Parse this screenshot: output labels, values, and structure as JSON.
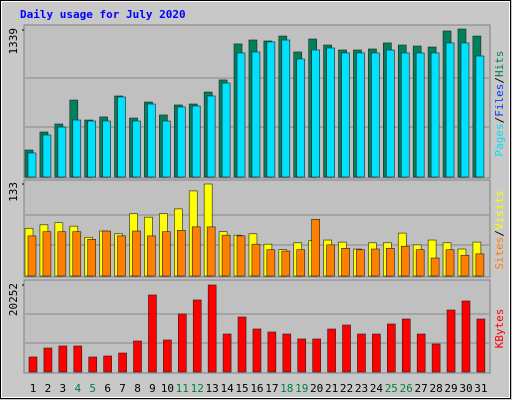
{
  "chart_data": [
    {
      "type": "bar",
      "title": "Daily usage for July 2020",
      "ylim": [
        0,
        1339
      ],
      "yticks": [
        1339
      ],
      "series": [
        {
          "name": "Hits",
          "color": "#00805c",
          "values": [
            246,
            410,
            483,
            701,
            519,
            547,
            738,
            537,
            683,
            565,
            656,
            665,
            774,
            884,
            1212,
            1248,
            1239,
            1284,
            1139,
            1257,
            1202,
            1157,
            1157,
            1166,
            1221,
            1202,
            1193,
            1184,
            1330,
            1348,
            1284
          ]
        },
        {
          "name": "Pages",
          "color": "#00e0ff",
          "values": [
            219,
            383,
            455,
            519,
            510,
            510,
            729,
            510,
            665,
            510,
            638,
            647,
            738,
            856,
            1130,
            1139,
            1230,
            1248,
            1075,
            1157,
            1175,
            1130,
            1130,
            1130,
            1157,
            1130,
            1130,
            1130,
            1221,
            1221,
            1102
          ]
        }
      ],
      "legend_extra": {
        "name": "Files",
        "color": "#0040ff"
      },
      "legend_separator": "/"
    },
    {
      "type": "bar",
      "ylim": [
        0,
        133
      ],
      "yticks": [
        133
      ],
      "series": [
        {
          "name": "Visits",
          "color": "#ffff00",
          "values": [
            69,
            74,
            77,
            72,
            56,
            65,
            61,
            90,
            85,
            90,
            97,
            123,
            133,
            64,
            59,
            61,
            46,
            38,
            48,
            51,
            52,
            49,
            39,
            48,
            48,
            62,
            45,
            52,
            48,
            39,
            49
          ]
        },
        {
          "name": "Sites",
          "color": "#ff8000",
          "values": [
            58,
            64,
            64,
            64,
            53,
            65,
            58,
            65,
            58,
            64,
            66,
            71,
            71,
            59,
            58,
            46,
            38,
            36,
            38,
            82,
            45,
            40,
            38,
            39,
            40,
            43,
            38,
            26,
            38,
            30,
            32
          ]
        }
      ],
      "legend_separator": "/"
    },
    {
      "type": "bar",
      "ylim": [
        0,
        20252
      ],
      "yticks": [
        20252
      ],
      "series": [
        {
          "name": "KBytes",
          "color": "#ff0000",
          "values": [
            3492,
            5587,
            6053,
            6053,
            3492,
            3725,
            4423,
            7217,
            17926,
            7450,
            13502,
            16762,
            20252,
            8846,
            12804,
            10010,
            9312,
            8846,
            7682,
            7682,
            10010,
            10942,
            8846,
            8846,
            11174,
            12338,
            8846,
            6518,
            14434,
            16529,
            12338
          ]
        }
      ],
      "categories": [
        "1",
        "2",
        "3",
        "4",
        "5",
        "6",
        "7",
        "8",
        "9",
        "10",
        "11",
        "12",
        "13",
        "14",
        "15",
        "16",
        "17",
        "18",
        "19",
        "20",
        "21",
        "22",
        "23",
        "24",
        "25",
        "26",
        "27",
        "28",
        "29",
        "30",
        "31"
      ],
      "category_colors": [
        "#000000",
        "#000000",
        "#000000",
        "#008040",
        "#008040",
        "#000000",
        "#000000",
        "#000000",
        "#000000",
        "#000000",
        "#008040",
        "#008040",
        "#000000",
        "#000000",
        "#000000",
        "#000000",
        "#000000",
        "#008040",
        "#008040",
        "#000000",
        "#000000",
        "#000000",
        "#000000",
        "#000000",
        "#008040",
        "#008040",
        "#000000",
        "#000000",
        "#000000",
        "#000000",
        "#000000"
      ]
    }
  ]
}
